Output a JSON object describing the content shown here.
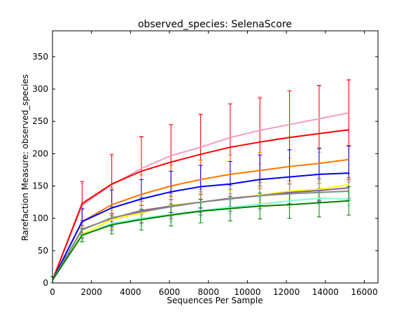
{
  "chart_data": {
    "type": "line",
    "title": "observed_species: SelenaScore",
    "xlabel": "Sequences Per Sample",
    "ylabel": "Rarefaction Measure: observed_species",
    "xlim": [
      0,
      16700
    ],
    "ylim": [
      0,
      390
    ],
    "xticks": [
      0,
      2000,
      4000,
      6000,
      8000,
      10000,
      12000,
      14000,
      16000
    ],
    "yticks": [
      0,
      50,
      100,
      150,
      200,
      250,
      300,
      350
    ],
    "xtick_labels": [
      "0",
      "2000",
      "4000",
      "6000",
      "8000",
      "10000",
      "12000",
      "14000",
      "16000"
    ],
    "ytick_labels": [
      "0",
      "50",
      "100",
      "150",
      "200",
      "250",
      "300",
      "350"
    ],
    "grid": false,
    "x": [
      10,
      1520,
      3040,
      4560,
      6080,
      7600,
      9120,
      10640,
      12160,
      13680,
      15200
    ],
    "series": [
      {
        "color": "#f79ac3",
        "values": [
          5,
          120,
          152,
          177,
          197,
          210,
          225,
          236,
          245,
          254,
          263
        ],
        "err": [
          5,
          34,
          44,
          50,
          48,
          50,
          52,
          52,
          52,
          52,
          52
        ]
      },
      {
        "color": "#ff0000",
        "values": [
          5,
          123,
          153,
          173,
          187,
          199,
          210,
          218,
          225,
          231,
          237
        ],
        "err": [
          5,
          34,
          46,
          53,
          58,
          62,
          67,
          68,
          72,
          74,
          77
        ]
      },
      {
        "color": "#ff7700",
        "values": [
          5,
          95,
          121,
          137,
          150,
          160,
          168,
          174,
          180,
          185,
          191
        ],
        "err": [
          5,
          18,
          26,
          30,
          32,
          30,
          30,
          28,
          26,
          24,
          22
        ]
      },
      {
        "color": "#0000ff",
        "values": [
          5,
          95,
          116,
          130,
          141,
          149,
          153,
          160,
          164,
          168,
          170
        ],
        "err": [
          5,
          20,
          28,
          30,
          32,
          33,
          35,
          38,
          42,
          40,
          42
        ]
      },
      {
        "color": "#ffff00",
        "values": [
          5,
          75,
          98,
          108,
          120,
          125,
          130,
          136,
          142,
          145,
          152
        ],
        "err": [
          5,
          12,
          14,
          14,
          13,
          13,
          13,
          12,
          12,
          12,
          10
        ]
      },
      {
        "color": "#8b5a9e",
        "values": [
          5,
          83,
          100,
          112,
          119,
          125,
          131,
          135,
          140,
          143,
          147
        ],
        "err": [
          5,
          14,
          18,
          20,
          20,
          20,
          20,
          20,
          18,
          18,
          16
        ]
      },
      {
        "color": "#888888",
        "values": [
          5,
          82,
          101,
          110,
          118,
          125,
          130,
          135,
          138,
          140,
          142
        ],
        "err": [
          5,
          12,
          15,
          16,
          16,
          16,
          15,
          15,
          15,
          14,
          14
        ]
      },
      {
        "color": "#7fffd4",
        "values": [
          5,
          73,
          92,
          100,
          106,
          112,
          117,
          122,
          127,
          131,
          130
        ],
        "err": [
          5,
          10,
          12,
          12,
          11,
          11,
          10,
          10,
          10,
          10,
          10
        ]
      },
      {
        "color": "#008000",
        "values": [
          5,
          74,
          90,
          98,
          105,
          111,
          115,
          119,
          121,
          124,
          127
        ],
        "err": [
          5,
          10,
          14,
          16,
          17,
          18,
          19,
          20,
          21,
          22,
          22
        ]
      }
    ]
  }
}
